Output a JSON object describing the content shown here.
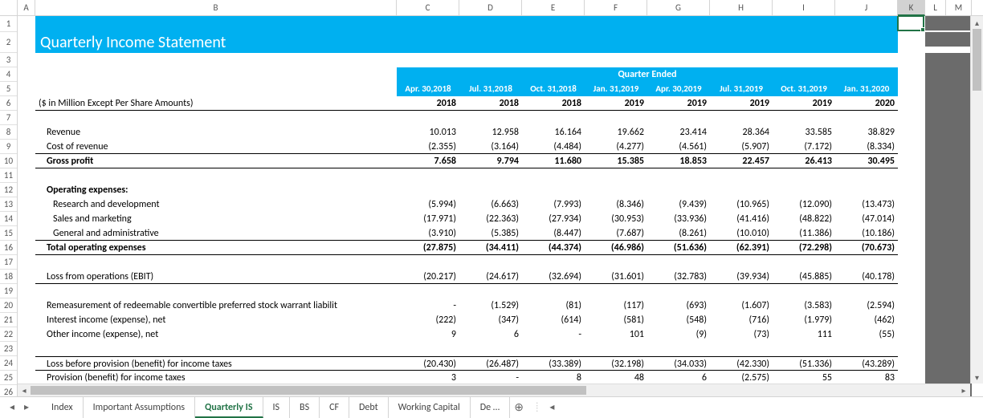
{
  "columns": {
    "letters": [
      "A",
      "B",
      "C",
      "D",
      "E",
      "F",
      "G",
      "H",
      "I",
      "J",
      "K",
      "L",
      "M"
    ],
    "widths": [
      22,
      450,
      78,
      78,
      78,
      78,
      78,
      78,
      78,
      78,
      34,
      26,
      32
    ],
    "selected": "K"
  },
  "row_count": 26,
  "title": "Quarterly Income Statement",
  "quarter_ended_label": "Quarter Ended",
  "period_headers": [
    "Apr. 30,2018",
    "Jul. 31,2018",
    "Oct. 31,2018",
    "Jan. 31,2019",
    "Apr. 30,2019",
    "Jul. 31,2019",
    "Oct. 31,2019",
    "Jan. 31,2020"
  ],
  "year_headers": [
    "2018",
    "2018",
    "2018",
    "2019",
    "2019",
    "2019",
    "2019",
    "2020"
  ],
  "subtitle": "($ in Million Except Per Share Amounts)",
  "rows": [
    {
      "label": "Revenue",
      "indent": 1,
      "vals": [
        "10.013",
        "12.958",
        "16.164",
        "19.662",
        "23.414",
        "28.364",
        "33.585",
        "38.829"
      ]
    },
    {
      "label": "Cost of revenue",
      "indent": 1,
      "underline": true,
      "vals": [
        "(2.355)",
        "(3.164)",
        "(4.484)",
        "(4.277)",
        "(4.561)",
        "(5.907)",
        "(7.172)",
        "(8.334)"
      ]
    },
    {
      "label": "Gross profit",
      "indent": 1,
      "bold": true,
      "underline": true,
      "vals": [
        "7.658",
        "9.794",
        "11.680",
        "15.385",
        "18.853",
        "22.457",
        "26.413",
        "30.495"
      ]
    },
    {
      "blank": true
    },
    {
      "label": "Operating expenses:",
      "indent": 1,
      "bold": true,
      "vals": [
        "",
        "",
        "",
        "",
        "",
        "",
        "",
        ""
      ]
    },
    {
      "label": "Research and development",
      "indent": 2,
      "vals": [
        "(5.994)",
        "(6.663)",
        "(7.993)",
        "(8.346)",
        "(9.439)",
        "(10.965)",
        "(12.090)",
        "(13.473)"
      ]
    },
    {
      "label": "Sales and marketing",
      "indent": 2,
      "vals": [
        "(17.971)",
        "(22.363)",
        "(27.934)",
        "(30.953)",
        "(33.936)",
        "(41.416)",
        "(48.822)",
        "(47.014)"
      ]
    },
    {
      "label": "General and administrative",
      "indent": 2,
      "underline": true,
      "vals": [
        "(3.910)",
        "(5.385)",
        "(8.447)",
        "(7.687)",
        "(8.261)",
        "(10.010)",
        "(11.386)",
        "(10.186)"
      ]
    },
    {
      "label": "Total operating expenses",
      "indent": 1,
      "bold": true,
      "underline": true,
      "vals": [
        "(27.875)",
        "(34.411)",
        "(44.374)",
        "(46.986)",
        "(51.636)",
        "(62.391)",
        "(72.298)",
        "(70.673)"
      ]
    },
    {
      "blank": true
    },
    {
      "label": "Loss from operations (EBIT)",
      "indent": 1,
      "underline": true,
      "vals": [
        "(20.217)",
        "(24.617)",
        "(32.694)",
        "(31.601)",
        "(32.783)",
        "(39.934)",
        "(45.885)",
        "(40.178)"
      ]
    },
    {
      "blank": true
    },
    {
      "label": "Remeasurement of redeemable convertible preferred stock warrant liabilit",
      "indent": 1,
      "vals": [
        "-",
        "(1.529)",
        "(81)",
        "(117)",
        "(693)",
        "(1.607)",
        "(3.583)",
        "(2.594)"
      ]
    },
    {
      "label": "Interest income (expense), net",
      "indent": 1,
      "vals": [
        "(222)",
        "(347)",
        "(614)",
        "(581)",
        "(548)",
        "(716)",
        "(1.979)",
        "(462)"
      ]
    },
    {
      "label": "Other income (expense), net",
      "indent": 1,
      "vals": [
        "9",
        "6",
        "-",
        "101",
        "(9)",
        "(73)",
        "111",
        "(55)"
      ]
    },
    {
      "blank": true
    },
    {
      "label": "Loss before provision (benefit) for income taxes",
      "indent": 1,
      "topline": true,
      "underline": true,
      "vals": [
        "(20.430)",
        "(26.487)",
        "(33.389)",
        "(32.198)",
        "(34.033)",
        "(42.330)",
        "(51.336)",
        "(43.289)"
      ]
    },
    {
      "label": "Provision (benefit) for income taxes",
      "indent": 1,
      "vals": [
        "3",
        "-",
        "8",
        "48",
        "6",
        "(2.575)",
        "55",
        "83"
      ]
    },
    {
      "blank": true
    }
  ],
  "tabs": {
    "items": [
      "Index",
      "Important Assumptions",
      "Quarterly IS",
      "IS",
      "BS",
      "CF",
      "Debt",
      "Working Capital",
      "De …"
    ],
    "active": "Quarterly IS"
  },
  "colors": {
    "brand_blue": "#00b0f0",
    "excel_green": "#217346",
    "dark_fill": "#6b6b6b"
  }
}
